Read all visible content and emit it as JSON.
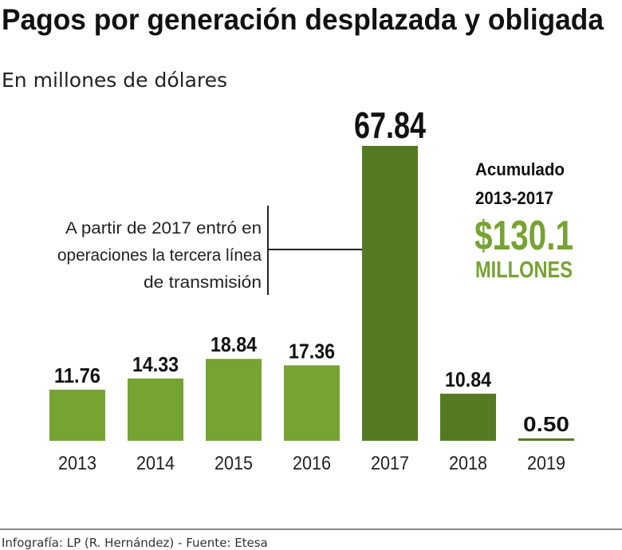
{
  "chart_data": {
    "type": "bar",
    "title": "Pagos por generación desplazada y obligada",
    "subtitle": "En millones de dólares",
    "categories": [
      "2013",
      "2014",
      "2015",
      "2016",
      "2017",
      "2018",
      "2019"
    ],
    "values": [
      11.76,
      14.33,
      18.84,
      17.36,
      67.84,
      10.84,
      0.5
    ],
    "value_labels": [
      "11.76",
      "14.33",
      "18.84",
      "17.36",
      "67.84",
      "10.84",
      "0.50"
    ],
    "bar_colors": [
      "#77a332",
      "#77a332",
      "#77a332",
      "#77a332",
      "#557a22",
      "#557a22",
      "#557a22"
    ],
    "ylim": [
      0,
      68
    ],
    "grid": false,
    "annotation": [
      "A partir de 2017 entró en",
      "operaciones la tercera línea",
      "de transmisión"
    ],
    "callout": {
      "line1": "Acumulado",
      "line2": "2013-2017",
      "amount": "$130.1",
      "unit": "MILLONES",
      "color": "#77a332"
    },
    "footer": "Infografía: LP (R. Hernández) - Fuente: Etesa"
  }
}
